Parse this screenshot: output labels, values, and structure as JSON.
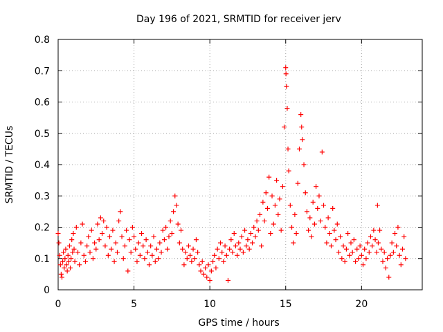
{
  "chart_data": {
    "type": "scatter",
    "title": "Day 196 of 2021, SRMTID for receiver jerv",
    "xlabel": "GPS time / hours",
    "ylabel": "SRMTID / TECUs",
    "xlim": [
      0,
      24
    ],
    "ylim": [
      0,
      0.8
    ],
    "x_ticks": [
      0,
      5,
      10,
      15,
      20
    ],
    "x_tick_labels": [
      "0",
      "5",
      "10",
      "15",
      "20"
    ],
    "y_ticks": [
      0,
      0.1,
      0.2,
      0.3,
      0.4,
      0.5,
      0.6,
      0.7,
      0.8
    ],
    "y_tick_labels": [
      "0",
      "0.1",
      "0.2",
      "0.3",
      "0.4",
      "0.5",
      "0.6",
      "0.7",
      "0.8"
    ],
    "grid": true,
    "marker": "+",
    "marker_color": "#ff0000",
    "series": [
      {
        "name": "SRMTID",
        "points": [
          [
            0.0,
            0.18
          ],
          [
            0.05,
            0.15
          ],
          [
            0.1,
            0.11
          ],
          [
            0.15,
            0.08
          ],
          [
            0.2,
            0.05
          ],
          [
            0.25,
            0.04
          ],
          [
            0.3,
            0.09
          ],
          [
            0.35,
            0.12
          ],
          [
            0.4,
            0.07
          ],
          [
            0.45,
            0.1
          ],
          [
            0.5,
            0.13
          ],
          [
            0.55,
            0.08
          ],
          [
            0.6,
            0.06
          ],
          [
            0.65,
            0.11
          ],
          [
            0.7,
            0.09
          ],
          [
            0.75,
            0.14
          ],
          [
            0.8,
            0.07
          ],
          [
            0.85,
            0.1
          ],
          [
            0.9,
            0.16
          ],
          [
            0.95,
            0.12
          ],
          [
            1.0,
            0.18
          ],
          [
            1.05,
            0.13
          ],
          [
            1.1,
            0.09
          ],
          [
            1.2,
            0.2
          ],
          [
            1.3,
            0.12
          ],
          [
            1.4,
            0.08
          ],
          [
            1.5,
            0.15
          ],
          [
            1.6,
            0.21
          ],
          [
            1.7,
            0.11
          ],
          [
            1.8,
            0.09
          ],
          [
            1.9,
            0.14
          ],
          [
            2.0,
            0.17
          ],
          [
            2.1,
            0.12
          ],
          [
            2.2,
            0.19
          ],
          [
            2.3,
            0.1
          ],
          [
            2.4,
            0.15
          ],
          [
            2.5,
            0.13
          ],
          [
            2.6,
            0.21
          ],
          [
            2.7,
            0.16
          ],
          [
            2.8,
            0.23
          ],
          [
            2.9,
            0.18
          ],
          [
            3.0,
            0.22
          ],
          [
            3.1,
            0.14
          ],
          [
            3.2,
            0.2
          ],
          [
            3.3,
            0.11
          ],
          [
            3.4,
            0.17
          ],
          [
            3.5,
            0.13
          ],
          [
            3.6,
            0.19
          ],
          [
            3.7,
            0.09
          ],
          [
            3.8,
            0.15
          ],
          [
            3.9,
            0.12
          ],
          [
            4.0,
            0.22
          ],
          [
            4.1,
            0.25
          ],
          [
            4.2,
            0.17
          ],
          [
            4.3,
            0.1
          ],
          [
            4.4,
            0.14
          ],
          [
            4.5,
            0.19
          ],
          [
            4.6,
            0.06
          ],
          [
            4.7,
            0.16
          ],
          [
            4.8,
            0.12
          ],
          [
            4.9,
            0.2
          ],
          [
            5.0,
            0.17
          ],
          [
            5.1,
            0.13
          ],
          [
            5.2,
            0.09
          ],
          [
            5.3,
            0.15
          ],
          [
            5.4,
            0.11
          ],
          [
            5.5,
            0.18
          ],
          [
            5.6,
            0.14
          ],
          [
            5.7,
            0.1
          ],
          [
            5.8,
            0.16
          ],
          [
            5.9,
            0.12
          ],
          [
            6.0,
            0.08
          ],
          [
            6.1,
            0.14
          ],
          [
            6.2,
            0.11
          ],
          [
            6.3,
            0.17
          ],
          [
            6.4,
            0.09
          ],
          [
            6.5,
            0.13
          ],
          [
            6.6,
            0.1
          ],
          [
            6.7,
            0.15
          ],
          [
            6.8,
            0.12
          ],
          [
            6.9,
            0.19
          ],
          [
            7.0,
            0.16
          ],
          [
            7.1,
            0.2
          ],
          [
            7.2,
            0.13
          ],
          [
            7.3,
            0.17
          ],
          [
            7.4,
            0.22
          ],
          [
            7.5,
            0.18
          ],
          [
            7.6,
            0.25
          ],
          [
            7.7,
            0.3
          ],
          [
            7.8,
            0.27
          ],
          [
            7.9,
            0.21
          ],
          [
            8.0,
            0.15
          ],
          [
            8.1,
            0.19
          ],
          [
            8.2,
            0.13
          ],
          [
            8.3,
            0.08
          ],
          [
            8.4,
            0.12
          ],
          [
            8.5,
            0.1
          ],
          [
            8.6,
            0.14
          ],
          [
            8.7,
            0.11
          ],
          [
            8.8,
            0.09
          ],
          [
            8.9,
            0.13
          ],
          [
            9.0,
            0.1
          ],
          [
            9.1,
            0.16
          ],
          [
            9.2,
            0.12
          ],
          [
            9.3,
            0.08
          ],
          [
            9.4,
            0.06
          ],
          [
            9.5,
            0.09
          ],
          [
            9.6,
            0.05
          ],
          [
            9.7,
            0.07
          ],
          [
            9.8,
            0.04
          ],
          [
            9.9,
            0.08
          ],
          [
            10.0,
            0.03
          ],
          [
            10.1,
            0.06
          ],
          [
            10.2,
            0.09
          ],
          [
            10.3,
            0.11
          ],
          [
            10.4,
            0.07
          ],
          [
            10.5,
            0.13
          ],
          [
            10.6,
            0.1
          ],
          [
            10.7,
            0.15
          ],
          [
            10.8,
            0.12
          ],
          [
            10.9,
            0.09
          ],
          [
            11.0,
            0.14
          ],
          [
            11.1,
            0.11
          ],
          [
            11.2,
            0.03
          ],
          [
            11.3,
            0.13
          ],
          [
            11.4,
            0.16
          ],
          [
            11.5,
            0.12
          ],
          [
            11.6,
            0.18
          ],
          [
            11.7,
            0.14
          ],
          [
            11.8,
            0.11
          ],
          [
            11.9,
            0.15
          ],
          [
            12.0,
            0.13
          ],
          [
            12.1,
            0.17
          ],
          [
            12.2,
            0.12
          ],
          [
            12.3,
            0.19
          ],
          [
            12.4,
            0.14
          ],
          [
            12.5,
            0.16
          ],
          [
            12.6,
            0.13
          ],
          [
            12.7,
            0.18
          ],
          [
            12.8,
            0.15
          ],
          [
            12.9,
            0.2
          ],
          [
            13.0,
            0.17
          ],
          [
            13.1,
            0.22
          ],
          [
            13.2,
            0.19
          ],
          [
            13.3,
            0.24
          ],
          [
            13.4,
            0.14
          ],
          [
            13.5,
            0.28
          ],
          [
            13.6,
            0.22
          ],
          [
            13.7,
            0.31
          ],
          [
            13.8,
            0.26
          ],
          [
            13.9,
            0.36
          ],
          [
            14.0,
            0.18
          ],
          [
            14.1,
            0.3
          ],
          [
            14.2,
            0.21
          ],
          [
            14.3,
            0.27
          ],
          [
            14.4,
            0.35
          ],
          [
            14.5,
            0.24
          ],
          [
            14.6,
            0.29
          ],
          [
            14.7,
            0.19
          ],
          [
            14.8,
            0.33
          ],
          [
            14.9,
            0.52
          ],
          [
            15.0,
            0.71
          ],
          [
            15.02,
            0.69
          ],
          [
            15.05,
            0.65
          ],
          [
            15.1,
            0.58
          ],
          [
            15.15,
            0.45
          ],
          [
            15.2,
            0.38
          ],
          [
            15.3,
            0.27
          ],
          [
            15.4,
            0.2
          ],
          [
            15.5,
            0.15
          ],
          [
            15.6,
            0.24
          ],
          [
            15.7,
            0.18
          ],
          [
            15.8,
            0.34
          ],
          [
            15.9,
            0.45
          ],
          [
            16.0,
            0.56
          ],
          [
            16.05,
            0.52
          ],
          [
            16.1,
            0.48
          ],
          [
            16.2,
            0.4
          ],
          [
            16.3,
            0.31
          ],
          [
            16.4,
            0.25
          ],
          [
            16.5,
            0.19
          ],
          [
            16.6,
            0.23
          ],
          [
            16.7,
            0.17
          ],
          [
            16.8,
            0.28
          ],
          [
            16.9,
            0.21
          ],
          [
            17.0,
            0.33
          ],
          [
            17.1,
            0.26
          ],
          [
            17.2,
            0.3
          ],
          [
            17.3,
            0.22
          ],
          [
            17.4,
            0.44
          ],
          [
            17.5,
            0.27
          ],
          [
            17.6,
            0.2
          ],
          [
            17.7,
            0.15
          ],
          [
            17.8,
            0.23
          ],
          [
            17.9,
            0.18
          ],
          [
            18.0,
            0.14
          ],
          [
            18.1,
            0.26
          ],
          [
            18.2,
            0.19
          ],
          [
            18.3,
            0.16
          ],
          [
            18.4,
            0.21
          ],
          [
            18.5,
            0.12
          ],
          [
            18.6,
            0.17
          ],
          [
            18.7,
            0.1
          ],
          [
            18.8,
            0.14
          ],
          [
            18.9,
            0.09
          ],
          [
            19.0,
            0.13
          ],
          [
            19.1,
            0.18
          ],
          [
            19.2,
            0.11
          ],
          [
            19.3,
            0.15
          ],
          [
            19.4,
            0.12
          ],
          [
            19.5,
            0.16
          ],
          [
            19.6,
            0.09
          ],
          [
            19.7,
            0.13
          ],
          [
            19.8,
            0.1
          ],
          [
            19.9,
            0.14
          ],
          [
            20.0,
            0.11
          ],
          [
            20.1,
            0.08
          ],
          [
            20.2,
            0.13
          ],
          [
            20.3,
            0.1
          ],
          [
            20.4,
            0.15
          ],
          [
            20.5,
            0.12
          ],
          [
            20.6,
            0.17
          ],
          [
            20.7,
            0.14
          ],
          [
            20.8,
            0.19
          ],
          [
            20.9,
            0.16
          ],
          [
            21.0,
            0.12
          ],
          [
            21.05,
            0.27
          ],
          [
            21.1,
            0.15
          ],
          [
            21.2,
            0.19
          ],
          [
            21.3,
            0.13
          ],
          [
            21.4,
            0.09
          ],
          [
            21.5,
            0.12
          ],
          [
            21.6,
            0.07
          ],
          [
            21.7,
            0.1
          ],
          [
            21.8,
            0.04
          ],
          [
            21.9,
            0.11
          ],
          [
            22.0,
            0.15
          ],
          [
            22.1,
            0.12
          ],
          [
            22.2,
            0.18
          ],
          [
            22.3,
            0.14
          ],
          [
            22.4,
            0.2
          ],
          [
            22.5,
            0.11
          ],
          [
            22.6,
            0.08
          ],
          [
            22.7,
            0.13
          ],
          [
            22.8,
            0.17
          ],
          [
            22.9,
            0.1
          ]
        ]
      }
    ]
  }
}
